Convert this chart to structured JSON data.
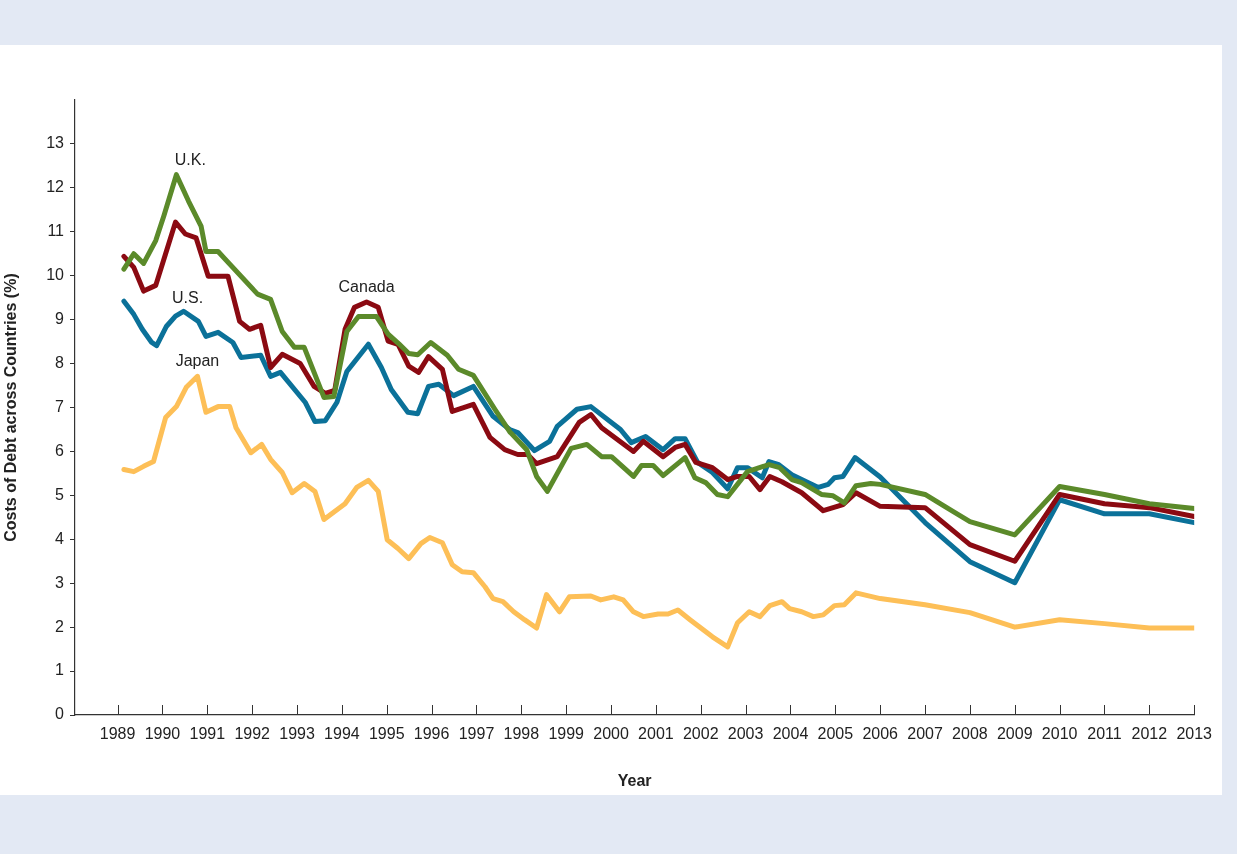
{
  "chart_data": {
    "type": "line",
    "xlabel": "Year",
    "ylabel": "Costs of Debt across Countries (%)",
    "xlim": [
      1988.05,
      2013
    ],
    "xticks": [
      1989,
      1990,
      1991,
      1992,
      1993,
      1994,
      1995,
      1996,
      1997,
      1998,
      1999,
      2000,
      2001,
      2002,
      2003,
      2004,
      2005,
      2006,
      2007,
      2008,
      2009,
      2010,
      2011,
      2012,
      2013
    ],
    "ylim": [
      0,
      14
    ],
    "yticks": [
      0,
      1,
      2,
      3,
      4,
      5,
      6,
      7,
      8,
      9,
      10,
      11,
      12,
      13
    ],
    "grid": false,
    "legend": false,
    "marker": "none",
    "line_style": "solid",
    "series": [
      {
        "name": "U.K.",
        "color": "#5b8a2a",
        "x": [
          1989.14,
          1989.36,
          1989.58,
          1989.85,
          1990.03,
          1990.31,
          1990.58,
          1990.86,
          1990.97,
          1991.24,
          1992.12,
          1992.41,
          1992.67,
          1992.94,
          1993.16,
          1993.6,
          1993.82,
          1994.11,
          1994.37,
          1994.77,
          1995.03,
          1995.27,
          1995.49,
          1995.69,
          1995.98,
          1996.35,
          1996.6,
          1996.93,
          1997.41,
          1997.74,
          1998.12,
          1998.34,
          1998.58,
          1999.11,
          1999.46,
          1999.79,
          2000.01,
          2000.5,
          2000.68,
          2000.94,
          2001.16,
          2001.65,
          2001.87,
          2002.11,
          2002.37,
          2002.6,
          2003.04,
          2003.52,
          2003.76,
          2004.03,
          2004.25,
          2004.69,
          2004.95,
          2005.2,
          2005.46,
          2005.79,
          2006,
          2007,
          2008,
          2009,
          2010,
          2011,
          2012,
          2013
        ],
        "values": [
          10.15,
          10.5,
          10.28,
          10.8,
          11.36,
          12.3,
          11.7,
          11.13,
          10.55,
          10.55,
          9.58,
          9.46,
          8.73,
          8.37,
          8.37,
          7.23,
          7.25,
          8.73,
          9.07,
          9.07,
          8.67,
          8.45,
          8.23,
          8.2,
          8.48,
          8.19,
          7.87,
          7.73,
          6.96,
          6.45,
          6.04,
          5.43,
          5.09,
          6.07,
          6.16,
          5.88,
          5.88,
          5.43,
          5.68,
          5.68,
          5.45,
          5.86,
          5.4,
          5.29,
          5.02,
          4.97,
          5.54,
          5.7,
          5.63,
          5.36,
          5.29,
          5.02,
          4.99,
          4.83,
          5.22,
          5.27,
          5.25,
          5.02,
          4.4,
          4.1,
          5.2,
          5.02,
          4.81,
          4.7
        ]
      },
      {
        "name": "Canada",
        "color": "#8b0a12",
        "x": [
          1989.14,
          1989.36,
          1989.58,
          1989.85,
          1990.29,
          1990.51,
          1990.75,
          1991.02,
          1991.46,
          1991.72,
          1991.94,
          1992.19,
          1992.41,
          1992.67,
          1993.07,
          1993.38,
          1993.63,
          1993.84,
          1994.07,
          1994.28,
          1994.55,
          1994.81,
          1995.03,
          1995.25,
          1995.49,
          1995.71,
          1995.93,
          1996.24,
          1996.46,
          1996.93,
          1997.3,
          1997.63,
          1997.92,
          1998.14,
          1998.34,
          1998.8,
          1999.29,
          1999.55,
          1999.79,
          2000.5,
          2000.72,
          2001.16,
          2001.43,
          2001.65,
          2001.89,
          2002.26,
          2002.6,
          2002.82,
          2003.08,
          2003.32,
          2003.54,
          2003.81,
          2004.25,
          2004.73,
          2005.17,
          2005.46,
          2006,
          2007,
          2008,
          2009,
          2010,
          2011,
          2012,
          2013
        ],
        "values": [
          10.44,
          10.19,
          9.65,
          9.78,
          11.22,
          10.95,
          10.86,
          9.99,
          9.99,
          8.96,
          8.78,
          8.87,
          7.91,
          8.21,
          8.0,
          7.48,
          7.32,
          7.39,
          8.78,
          9.28,
          9.4,
          9.28,
          8.51,
          8.44,
          7.94,
          7.8,
          8.16,
          7.87,
          6.91,
          7.07,
          6.32,
          6.04,
          5.93,
          5.93,
          5.72,
          5.88,
          6.66,
          6.84,
          6.54,
          6.0,
          6.23,
          5.88,
          6.09,
          6.16,
          5.75,
          5.63,
          5.36,
          5.43,
          5.43,
          5.13,
          5.43,
          5.31,
          5.06,
          4.65,
          4.79,
          5.06,
          4.75,
          4.72,
          3.88,
          3.5,
          5.02,
          4.81,
          4.72,
          4.52
        ]
      },
      {
        "name": "U.S.",
        "color": "#0b7199",
        "x": [
          1989.14,
          1989.36,
          1989.55,
          1989.76,
          1989.87,
          1990.09,
          1990.29,
          1990.47,
          1990.8,
          1990.97,
          1991.24,
          1991.57,
          1991.75,
          1992.19,
          1992.41,
          1992.63,
          1993.18,
          1993.4,
          1993.63,
          1993.89,
          1994.11,
          1994.59,
          1994.88,
          1995.1,
          1995.47,
          1995.69,
          1995.93,
          1996.16,
          1996.49,
          1996.93,
          1997.37,
          1997.74,
          1997.92,
          1998.29,
          1998.63,
          1998.8,
          1999.24,
          1999.55,
          2000.21,
          2000.45,
          2000.77,
          2001.16,
          2001.43,
          2001.65,
          2001.93,
          2002.26,
          2002.6,
          2002.82,
          2003.04,
          2003.37,
          2003.52,
          2003.74,
          2004.03,
          2004.62,
          2004.84,
          2004.98,
          2005.17,
          2005.44,
          2006,
          2007,
          2008,
          2009,
          2010,
          2011,
          2012,
          2013
        ],
        "values": [
          9.42,
          9.12,
          8.78,
          8.48,
          8.41,
          8.85,
          9.08,
          9.19,
          8.96,
          8.62,
          8.71,
          8.48,
          8.14,
          8.19,
          7.71,
          7.8,
          7.12,
          6.68,
          6.7,
          7.12,
          7.82,
          8.44,
          7.91,
          7.41,
          6.89,
          6.86,
          7.48,
          7.53,
          7.27,
          7.48,
          6.8,
          6.5,
          6.43,
          6.02,
          6.23,
          6.57,
          6.96,
          7.02,
          6.5,
          6.2,
          6.34,
          6.04,
          6.29,
          6.29,
          5.75,
          5.52,
          5.15,
          5.63,
          5.63,
          5.4,
          5.77,
          5.7,
          5.47,
          5.18,
          5.25,
          5.4,
          5.43,
          5.86,
          5.42,
          4.38,
          3.49,
          3.01,
          4.9,
          4.58,
          4.58,
          4.38
        ]
      },
      {
        "name": "Japan",
        "color": "#fdbf57",
        "x": [
          1989.14,
          1989.36,
          1989.58,
          1989.8,
          1990.07,
          1990.31,
          1990.53,
          1990.78,
          1990.97,
          1991.24,
          1991.5,
          1991.64,
          1991.97,
          1992.21,
          1992.41,
          1992.67,
          1992.89,
          1993.16,
          1993.4,
          1993.6,
          1994.07,
          1994.33,
          1994.59,
          1994.81,
          1995.01,
          1995.25,
          1995.49,
          1995.76,
          1995.96,
          1996.24,
          1996.46,
          1996.68,
          1996.93,
          1997.19,
          1997.37,
          1997.59,
          1997.83,
          1998.07,
          1998.34,
          1998.56,
          1998.85,
          1999.07,
          1999.55,
          1999.77,
          2000.06,
          2000.27,
          2000.5,
          2000.72,
          2001.05,
          2001.27,
          2001.49,
          2001.76,
          2002.26,
          2002.6,
          2002.82,
          2003.08,
          2003.32,
          2003.54,
          2003.81,
          2003.98,
          2004.25,
          2004.51,
          2004.73,
          2004.98,
          2005.2,
          2005.46,
          2006,
          2007,
          2008,
          2009,
          2010,
          2011,
          2012,
          2013
        ],
        "values": [
          5.59,
          5.54,
          5.66,
          5.77,
          6.77,
          7.02,
          7.46,
          7.71,
          6.89,
          7.02,
          7.02,
          6.54,
          5.97,
          6.16,
          5.82,
          5.52,
          5.06,
          5.27,
          5.09,
          4.45,
          4.81,
          5.18,
          5.34,
          5.09,
          3.99,
          3.79,
          3.56,
          3.9,
          4.04,
          3.92,
          3.42,
          3.26,
          3.24,
          2.92,
          2.65,
          2.58,
          2.35,
          2.17,
          1.98,
          2.74,
          2.35,
          2.69,
          2.71,
          2.62,
          2.69,
          2.62,
          2.35,
          2.24,
          2.3,
          2.3,
          2.39,
          2.17,
          1.78,
          1.55,
          2.1,
          2.35,
          2.24,
          2.49,
          2.58,
          2.42,
          2.35,
          2.24,
          2.28,
          2.49,
          2.51,
          2.78,
          2.65,
          2.51,
          2.33,
          2.0,
          2.17,
          2.08,
          1.98,
          1.98
        ]
      }
    ]
  }
}
